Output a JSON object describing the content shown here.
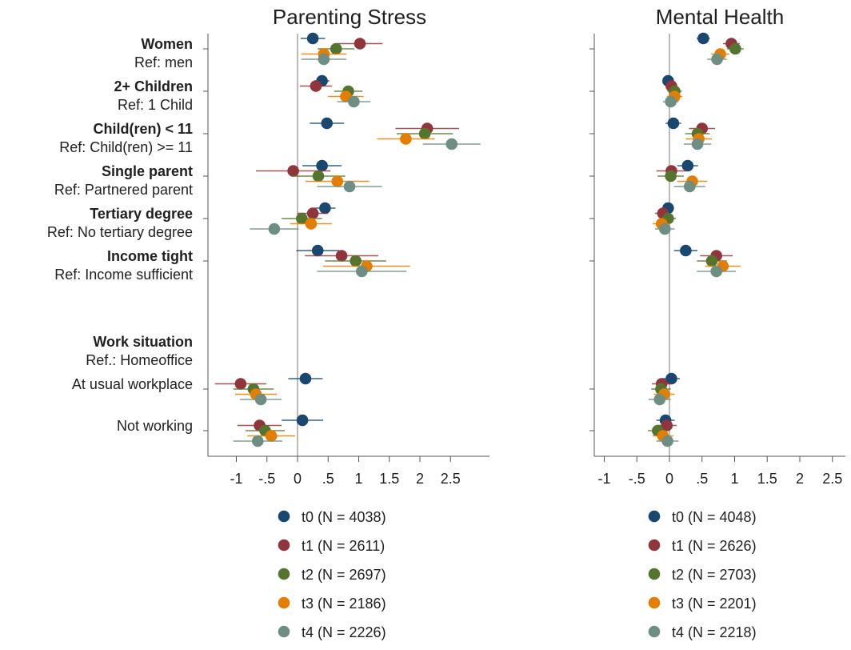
{
  "colors": {
    "t0": "#1a476f",
    "t1": "#90353b",
    "t2": "#55752f",
    "t3": "#e37e00",
    "t4": "#6e8e84",
    "axis": "#555555",
    "zero_line": "#bbbbbb"
  },
  "rows": [
    {
      "key": "women",
      "heading": "Women",
      "reference": "Ref: men"
    },
    {
      "key": "children",
      "heading": "2+ Children",
      "reference": "Ref: 1 Child"
    },
    {
      "key": "young",
      "heading": "Child(ren) < 11",
      "reference": "Ref: Child(ren) >= 11"
    },
    {
      "key": "single",
      "heading": "Single parent",
      "reference": "Ref: Partnered parent"
    },
    {
      "key": "tertiary",
      "heading": "Tertiary degree",
      "reference": "Ref: No tertiary degree"
    },
    {
      "key": "income",
      "heading": "Income tight",
      "reference": "Ref: Income sufficient"
    },
    {
      "key": "worksituation",
      "heading": "Work situation",
      "reference": "Ref.: Homeoffice"
    },
    {
      "key": "workplace",
      "heading": "",
      "reference": "At usual workplace"
    },
    {
      "key": "notworking",
      "heading": "",
      "reference": "Not working"
    }
  ],
  "chart_data": [
    {
      "type": "scatter",
      "title": "Parenting Stress",
      "xlim": [
        -1.55,
        3.1
      ],
      "x_ticks": [
        {
          "value": -1,
          "label": "-1"
        },
        {
          "value": -0.5,
          "label": "-.5"
        },
        {
          "value": 0,
          "label": "0"
        },
        {
          "value": 0.5,
          "label": ".5"
        },
        {
          "value": 1,
          "label": "1"
        },
        {
          "value": 1.5,
          "label": "1.5"
        },
        {
          "value": 2,
          "label": "2"
        },
        {
          "value": 2.5,
          "label": "2.5"
        }
      ],
      "legend": [
        "t0 (N = 4038)",
        "t1 (N = 2611)",
        "t2 (N = 2697)",
        "t3 (N = 2186)",
        "t4 (N = 2226)"
      ],
      "series": [
        {
          "name": "t0 (N = 4038)",
          "points": [
            {
              "row": "women",
              "est": 0.25,
              "lo": 0.05,
              "hi": 0.45
            },
            {
              "row": "children",
              "est": 0.4,
              "lo": 0.28,
              "hi": 0.52
            },
            {
              "row": "young",
              "est": 0.48,
              "lo": 0.2,
              "hi": 0.76
            },
            {
              "row": "single",
              "est": 0.4,
              "lo": 0.08,
              "hi": 0.72
            },
            {
              "row": "tertiary",
              "est": 0.45,
              "lo": 0.28,
              "hi": 0.62
            },
            {
              "row": "income",
              "est": 0.33,
              "lo": -0.02,
              "hi": 0.68
            },
            {
              "row": "workplace",
              "est": 0.13,
              "lo": -0.15,
              "hi": 0.41
            },
            {
              "row": "notworking",
              "est": 0.08,
              "lo": -0.26,
              "hi": 0.42
            }
          ]
        },
        {
          "name": "t1 (N = 2611)",
          "points": [
            {
              "row": "women",
              "est": 1.02,
              "lo": 0.65,
              "hi": 1.39
            },
            {
              "row": "children",
              "est": 0.3,
              "lo": 0.04,
              "hi": 0.56
            },
            {
              "row": "young",
              "est": 2.12,
              "lo": 1.6,
              "hi": 2.64
            },
            {
              "row": "single",
              "est": -0.07,
              "lo": -0.68,
              "hi": 0.54
            },
            {
              "row": "tertiary",
              "est": 0.25,
              "lo": 0.0,
              "hi": 0.5
            },
            {
              "row": "income",
              "est": 0.72,
              "lo": 0.12,
              "hi": 1.32
            },
            {
              "row": "workplace",
              "est": -0.93,
              "lo": -1.35,
              "hi": -0.51
            },
            {
              "row": "notworking",
              "est": -0.62,
              "lo": -0.98,
              "hi": -0.26
            }
          ]
        },
        {
          "name": "t2 (N = 2697)",
          "points": [
            {
              "row": "women",
              "est": 0.63,
              "lo": 0.33,
              "hi": 0.93
            },
            {
              "row": "children",
              "est": 0.83,
              "lo": 0.6,
              "hi": 1.06
            },
            {
              "row": "young",
              "est": 2.08,
              "lo": 1.62,
              "hi": 2.54
            },
            {
              "row": "single",
              "est": 0.34,
              "lo": -0.1,
              "hi": 0.78
            },
            {
              "row": "tertiary",
              "est": 0.07,
              "lo": -0.26,
              "hi": 0.4
            },
            {
              "row": "income",
              "est": 0.95,
              "lo": 0.45,
              "hi": 1.45
            },
            {
              "row": "workplace",
              "est": -0.72,
              "lo": -1.05,
              "hi": -0.39
            },
            {
              "row": "notworking",
              "est": -0.53,
              "lo": -0.85,
              "hi": -0.21
            }
          ]
        },
        {
          "name": "t3 (N = 2186)",
          "points": [
            {
              "row": "women",
              "est": 0.43,
              "lo": 0.06,
              "hi": 0.8
            },
            {
              "row": "children",
              "est": 0.79,
              "lo": 0.5,
              "hi": 1.08
            },
            {
              "row": "young",
              "est": 1.77,
              "lo": 1.3,
              "hi": 2.24
            },
            {
              "row": "single",
              "est": 0.65,
              "lo": 0.13,
              "hi": 1.17
            },
            {
              "row": "tertiary",
              "est": 0.22,
              "lo": -0.12,
              "hi": 0.56
            },
            {
              "row": "income",
              "est": 1.13,
              "lo": 0.42,
              "hi": 1.84
            },
            {
              "row": "workplace",
              "est": -0.68,
              "lo": -1.02,
              "hi": -0.34
            },
            {
              "row": "notworking",
              "est": -0.43,
              "lo": -0.82,
              "hi": -0.04
            }
          ]
        },
        {
          "name": "t4 (N = 2226)",
          "points": [
            {
              "row": "women",
              "est": 0.43,
              "lo": 0.06,
              "hi": 0.8
            },
            {
              "row": "children",
              "est": 0.92,
              "lo": 0.65,
              "hi": 1.19
            },
            {
              "row": "young",
              "est": 2.52,
              "lo": 2.05,
              "hi": 2.99
            },
            {
              "row": "single",
              "est": 0.85,
              "lo": 0.32,
              "hi": 1.38
            },
            {
              "row": "tertiary",
              "est": -0.38,
              "lo": -0.78,
              "hi": 0.02
            },
            {
              "row": "income",
              "est": 1.05,
              "lo": 0.32,
              "hi": 1.78
            },
            {
              "row": "workplace",
              "est": -0.6,
              "lo": -0.94,
              "hi": -0.26
            },
            {
              "row": "notworking",
              "est": -0.65,
              "lo": -1.05,
              "hi": -0.25
            }
          ]
        }
      ]
    },
    {
      "type": "scatter",
      "title": "Mental Health",
      "xlim": [
        -1.3,
        2.6
      ],
      "x_ticks": [
        {
          "value": -1,
          "label": "-1"
        },
        {
          "value": -0.5,
          "label": "-.5"
        },
        {
          "value": 0,
          "label": "0"
        },
        {
          "value": 0.5,
          "label": ".5"
        },
        {
          "value": 1,
          "label": "1"
        },
        {
          "value": 1.5,
          "label": "1.5"
        },
        {
          "value": 2,
          "label": "2"
        },
        {
          "value": 2.5,
          "label": "2.5"
        }
      ],
      "legend": [
        "t0 (N = 4048)",
        "t1 (N = 2626)",
        "t2 (N = 2703)",
        "t3 (N = 2201)",
        "t4 (N = 2218)"
      ],
      "series": [
        {
          "name": "t0 (N = 4048)",
          "points": [
            {
              "row": "women",
              "est": 0.52,
              "lo": 0.42,
              "hi": 0.62
            },
            {
              "row": "children",
              "est": -0.02,
              "lo": -0.08,
              "hi": 0.04
            },
            {
              "row": "young",
              "est": 0.06,
              "lo": -0.06,
              "hi": 0.18
            },
            {
              "row": "single",
              "est": 0.28,
              "lo": 0.12,
              "hi": 0.44
            },
            {
              "row": "tertiary",
              "est": -0.02,
              "lo": -0.1,
              "hi": 0.06
            },
            {
              "row": "income",
              "est": 0.25,
              "lo": 0.07,
              "hi": 0.43
            },
            {
              "row": "workplace",
              "est": 0.03,
              "lo": -0.1,
              "hi": 0.16
            },
            {
              "row": "notworking",
              "est": -0.06,
              "lo": -0.2,
              "hi": 0.08
            }
          ]
        },
        {
          "name": "t1 (N = 2626)",
          "points": [
            {
              "row": "women",
              "est": 0.95,
              "lo": 0.82,
              "hi": 1.08
            },
            {
              "row": "children",
              "est": 0.03,
              "lo": -0.06,
              "hi": 0.12
            },
            {
              "row": "young",
              "est": 0.5,
              "lo": 0.3,
              "hi": 0.7
            },
            {
              "row": "single",
              "est": 0.03,
              "lo": -0.2,
              "hi": 0.26
            },
            {
              "row": "tertiary",
              "est": -0.1,
              "lo": -0.22,
              "hi": 0.02
            },
            {
              "row": "income",
              "est": 0.72,
              "lo": 0.47,
              "hi": 0.97
            },
            {
              "row": "workplace",
              "est": -0.12,
              "lo": -0.27,
              "hi": 0.03
            },
            {
              "row": "notworking",
              "est": -0.04,
              "lo": -0.19,
              "hi": 0.11
            }
          ]
        },
        {
          "name": "t2 (N = 2703)",
          "points": [
            {
              "row": "women",
              "est": 1.01,
              "lo": 0.88,
              "hi": 1.14
            },
            {
              "row": "children",
              "est": 0.08,
              "lo": -0.03,
              "hi": 0.19
            },
            {
              "row": "young",
              "est": 0.43,
              "lo": 0.24,
              "hi": 0.62
            },
            {
              "row": "single",
              "est": 0.02,
              "lo": -0.18,
              "hi": 0.22
            },
            {
              "row": "tertiary",
              "est": -0.02,
              "lo": -0.14,
              "hi": 0.1
            },
            {
              "row": "income",
              "est": 0.65,
              "lo": 0.42,
              "hi": 0.88
            },
            {
              "row": "workplace",
              "est": -0.13,
              "lo": -0.28,
              "hi": 0.02
            },
            {
              "row": "notworking",
              "est": -0.18,
              "lo": -0.33,
              "hi": -0.03
            }
          ]
        },
        {
          "name": "t3 (N = 2201)",
          "points": [
            {
              "row": "women",
              "est": 0.78,
              "lo": 0.64,
              "hi": 0.92
            },
            {
              "row": "children",
              "est": 0.08,
              "lo": -0.04,
              "hi": 0.2
            },
            {
              "row": "young",
              "est": 0.45,
              "lo": 0.25,
              "hi": 0.65
            },
            {
              "row": "single",
              "est": 0.35,
              "lo": 0.12,
              "hi": 0.58
            },
            {
              "row": "tertiary",
              "est": -0.12,
              "lo": -0.26,
              "hi": 0.02
            },
            {
              "row": "income",
              "est": 0.82,
              "lo": 0.55,
              "hi": 1.09
            },
            {
              "row": "workplace",
              "est": -0.08,
              "lo": -0.24,
              "hi": 0.08
            },
            {
              "row": "notworking",
              "est": -0.1,
              "lo": -0.26,
              "hi": 0.06
            }
          ]
        },
        {
          "name": "t4 (N = 2218)",
          "points": [
            {
              "row": "women",
              "est": 0.73,
              "lo": 0.58,
              "hi": 0.88
            },
            {
              "row": "children",
              "est": 0.02,
              "lo": -0.1,
              "hi": 0.14
            },
            {
              "row": "young",
              "est": 0.43,
              "lo": 0.22,
              "hi": 0.64
            },
            {
              "row": "single",
              "est": 0.31,
              "lo": 0.07,
              "hi": 0.55
            },
            {
              "row": "tertiary",
              "est": -0.07,
              "lo": -0.22,
              "hi": 0.08
            },
            {
              "row": "income",
              "est": 0.72,
              "lo": 0.42,
              "hi": 1.02
            },
            {
              "row": "workplace",
              "est": -0.15,
              "lo": -0.32,
              "hi": 0.02
            },
            {
              "row": "notworking",
              "est": -0.03,
              "lo": -0.2,
              "hi": 0.14
            }
          ]
        }
      ]
    }
  ]
}
